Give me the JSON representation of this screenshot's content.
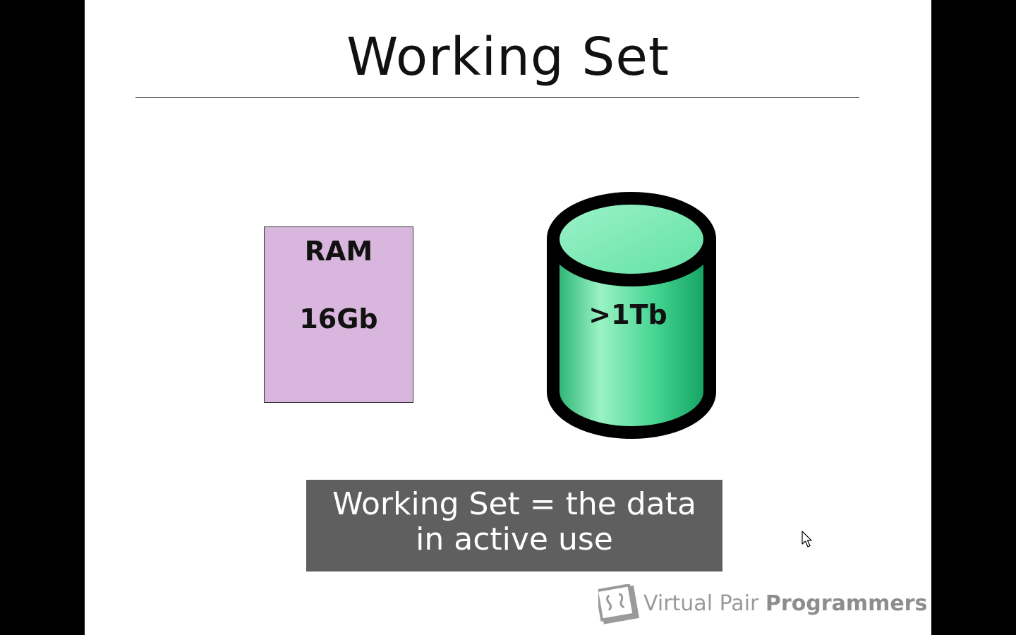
{
  "slide": {
    "title": "Working Set"
  },
  "ram": {
    "label": "RAM",
    "size": "16Gb",
    "color": "#d9b6dd"
  },
  "disk": {
    "label": ">1Tb",
    "color": "#3fd18f"
  },
  "caption": {
    "line1": "Working Set = the data",
    "line2": "in active use"
  },
  "logo": {
    "name_light": "Virtual Pair",
    "name_bold": "Programmers"
  },
  "cursor": {
    "icon": "mouse-pointer-icon"
  }
}
